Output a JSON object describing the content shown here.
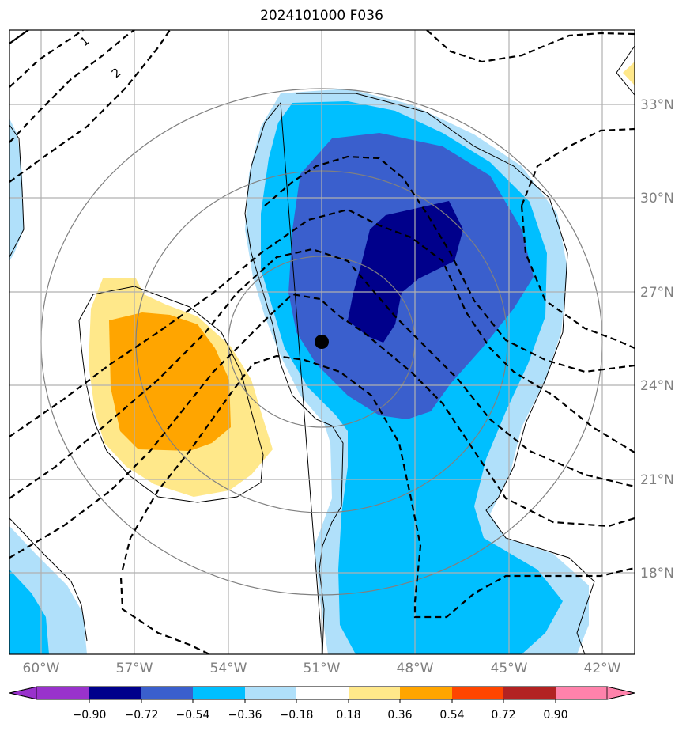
{
  "title": "2024101000 F036",
  "map": {
    "lon_labels": [
      "60°W",
      "57°W",
      "54°W",
      "51°W",
      "48°W",
      "45°W",
      "42°W"
    ],
    "lat_labels": [
      "33°N",
      "30°N",
      "27°N",
      "24°N",
      "21°N",
      "18°N"
    ],
    "contour_labels": [
      "1",
      "2"
    ],
    "center_marker": "storm-center-dot"
  },
  "colorbar": {
    "ticks": [
      "−0.90",
      "−0.72",
      "−0.54",
      "−0.36",
      "−0.18",
      "0.18",
      "0.36",
      "0.54",
      "0.72",
      "0.90"
    ],
    "colors": [
      "#9932CC",
      "#00008B",
      "#3A5FCD",
      "#00BFFF",
      "#B0E0FA",
      "#FFFFFF",
      "#FFE88A",
      "#FFA500",
      "#FF4500",
      "#B22222",
      "#FF82AB"
    ]
  }
}
